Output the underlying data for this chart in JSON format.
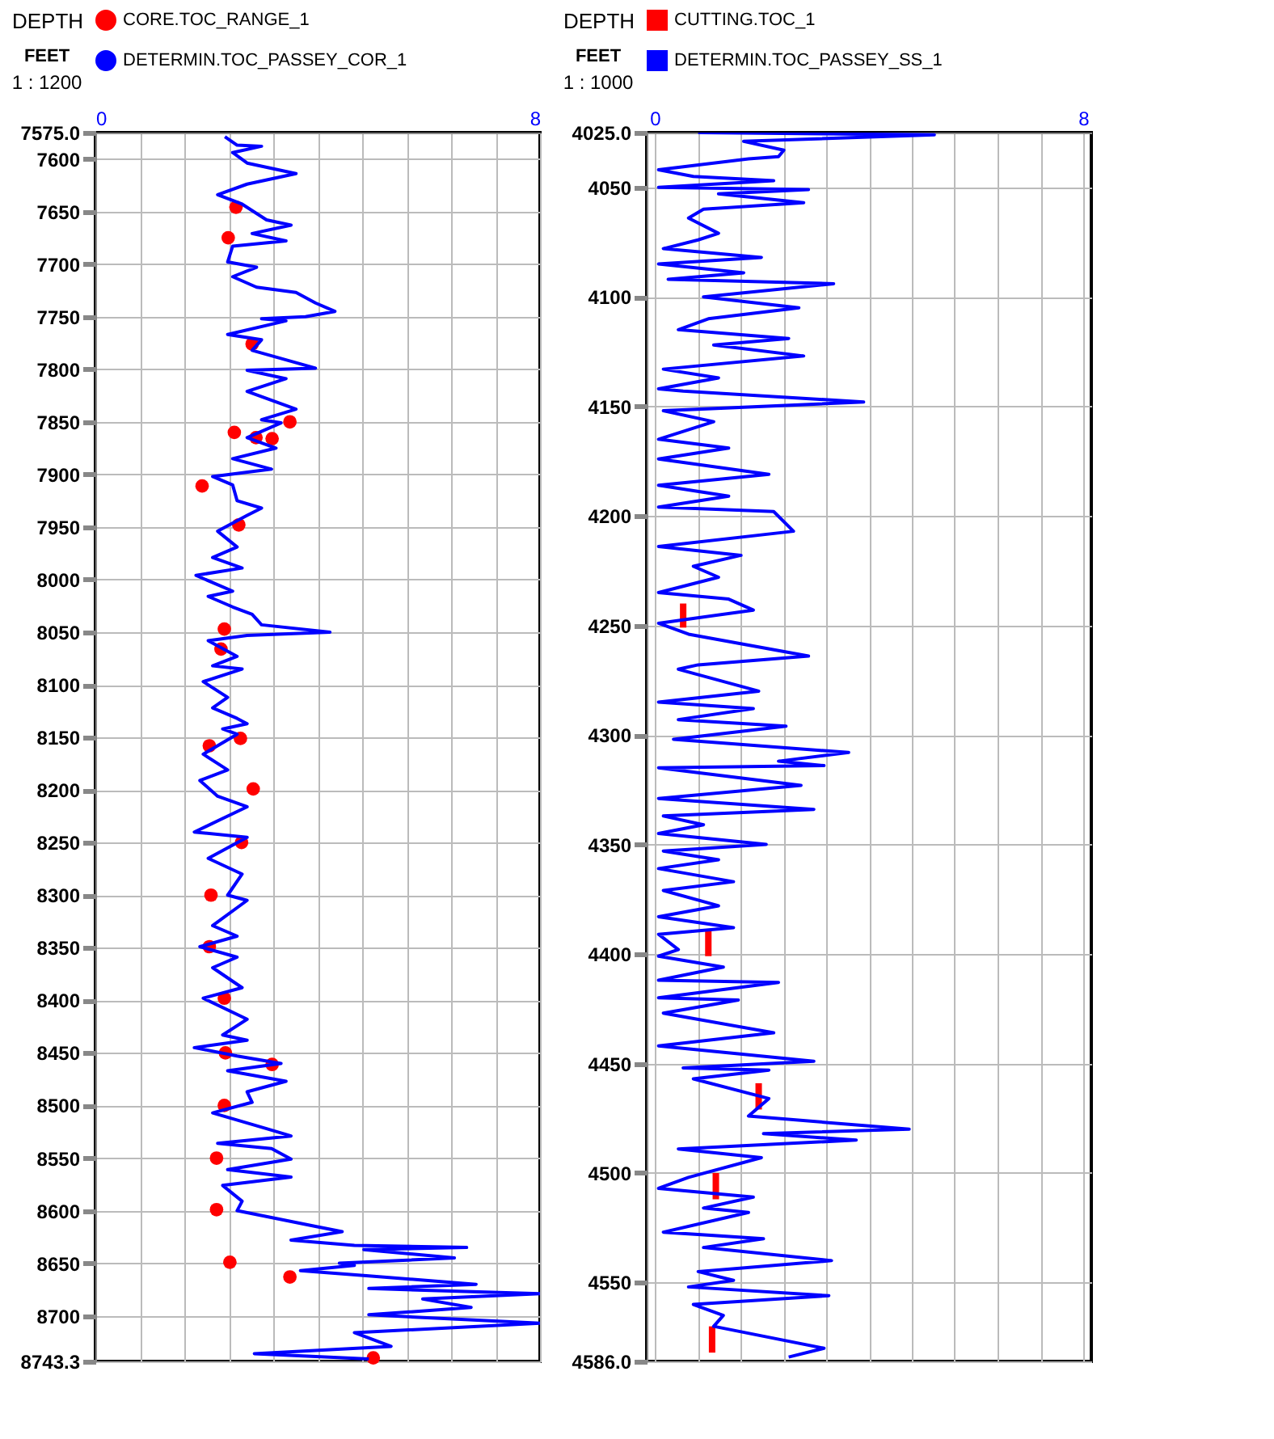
{
  "chart_data": [
    {
      "type": "line",
      "ylabel": "DEPTH",
      "annotations": [
        "FEET",
        "1 : 1200"
      ],
      "legend": "top",
      "grid": true,
      "xlim": [
        0,
        8
      ],
      "xticks": [
        0,
        {
          "value": 0.8,
          "label": null
        },
        {
          "value": 1.6,
          "label": null
        },
        {
          "value": 2.4,
          "label": null
        },
        {
          "value": 3.2,
          "label": null
        },
        {
          "value": 4,
          "label": null
        },
        {
          "value": 4.8,
          "label": null
        },
        {
          "value": 5.6,
          "label": null
        },
        {
          "value": 6.4,
          "label": null
        },
        {
          "value": 7.2,
          "label": null
        },
        8
      ],
      "ylim": [
        8743.3,
        7575
      ],
      "yticks": [
        {
          "value": 7575,
          "label": "7575.0"
        },
        7600,
        7650,
        7700,
        7750,
        7800,
        7850,
        7900,
        7950,
        8000,
        8050,
        8100,
        8150,
        8200,
        8250,
        8300,
        8350,
        8400,
        8450,
        8500,
        8550,
        8600,
        8650,
        8700,
        {
          "value": 8743.3,
          "label": "8743.3"
        }
      ],
      "series": [
        {
          "name": "CORE.TOC_RANGE_1",
          "type": "scatter",
          "marker": "circle",
          "color": "#ff0000",
          "x": [
            2.53,
            2.39,
            2.82,
            3.5,
            2.5,
            2.89,
            3.18,
            1.92,
            2.58,
            2.32,
            2.26,
            2.61,
            2.05,
            2.84,
            2.63,
            2.08,
            2.05,
            2.32,
            2.34,
            3.18,
            2.32,
            2.18,
            2.18,
            2.42,
            3.5,
            5.0
          ],
          "values": [
            7646,
            7675,
            7776,
            7850,
            7860,
            7865,
            7866,
            7911,
            7948,
            8047,
            8066,
            8151,
            8158,
            8199,
            8250,
            8300,
            8349,
            8398,
            8450,
            8461,
            8500,
            8550,
            8599,
            8649,
            8663,
            8740
          ]
        },
        {
          "name": "DETERMIN.TOC_PASSEY_COR_1",
          "color": "#0000ff",
          "x": [
            2.33,
            2.55,
            2.99,
            2.47,
            2.73,
            3.61,
            2.73,
            2.2,
            2.64,
            3.08,
            3.52,
            2.82,
            3.43,
            2.47,
            2.38,
            2.9,
            2.47,
            2.9,
            3.61,
            3.96,
            4.31,
            3.78,
            2.99,
            3.43,
            2.38,
            2.99,
            2.82,
            3.96,
            2.73,
            3.43,
            2.73,
            3.61,
            2.99,
            3.34,
            2.73,
            3.25,
            2.47,
            3.17,
            2.11,
            2.47,
            2.55,
            2.99,
            2.73,
            2.2,
            2.55,
            2.11,
            2.64,
            1.81,
            2.47,
            2.03,
            2.47,
            2.82,
            2.99,
            4.22,
            2.73,
            2.03,
            2.55,
            2.11,
            2.64,
            1.94,
            2.38,
            2.11,
            2.55,
            2.73,
            2.29,
            2.55,
            1.94,
            2.38,
            1.88,
            2.2,
            2.73,
            1.78,
            2.73,
            2.03,
            2.64,
            2.38,
            2.73,
            2.11,
            2.55,
            1.88,
            2.55,
            2.11,
            2.64,
            1.94,
            2.73,
            2.29,
            2.73,
            1.78,
            2.55,
            3.34,
            2.38,
            3.43,
            2.73,
            2.82,
            2.11,
            3.08,
            3.52,
            2.2,
            3.17,
            3.52,
            2.38,
            3.52,
            2.29,
            2.64,
            2.55,
            3.96,
            4.44,
            3.52,
            4.66,
            6.68,
            4.83,
            6.46,
            4.39,
            4.66,
            3.69,
            4.92,
            6.85,
            4.92,
            8,
            5.89,
            6.76,
            4.92,
            8,
            4.66,
            5.32,
            2.86,
            4.92
          ],
          "values": [
            7579,
            7587,
            7588,
            7594,
            7604,
            7614,
            7624,
            7634,
            7643,
            7658,
            7663,
            7671,
            7678,
            7683,
            7698,
            7703,
            7712,
            7722,
            7727,
            7737,
            7745,
            7750,
            7752,
            7754,
            7767,
            7772,
            7782,
            7799,
            7801,
            7809,
            7821,
            7838,
            7848,
            7851,
            7865,
            7875,
            7885,
            7895,
            7902,
            7910,
            7925,
            7932,
            7939,
            7954,
            7969,
            7979,
            7989,
            7996,
            8011,
            8016,
            8026,
            8033,
            8043,
            8050,
            8053,
            8058,
            8073,
            8082,
            8085,
            8097,
            8112,
            8122,
            8132,
            8137,
            8142,
            8147,
            8166,
            8181,
            8191,
            8206,
            8216,
            8240,
            8245,
            8265,
            8280,
            8300,
            8305,
            8329,
            8339,
            8349,
            8359,
            8369,
            8388,
            8398,
            8418,
            8433,
            8438,
            8445,
            8453,
            8460,
            8467,
            8477,
            8487,
            8497,
            8507,
            8522,
            8529,
            8536,
            8541,
            8551,
            8561,
            8568,
            8576,
            8591,
            8600,
            8615,
            8620,
            8628,
            8633,
            8635,
            8637,
            8645,
            8650,
            8652,
            8657,
            8662,
            8670,
            8674,
            8679,
            8684,
            8692,
            8699,
            8707,
            8716,
            8729,
            8736,
            8741
          ]
        }
      ]
    },
    {
      "type": "line",
      "ylabel": "DEPTH",
      "annotations": [
        "FEET",
        "1 : 1000"
      ],
      "legend": "top",
      "grid": true,
      "xlim": [
        0,
        8
      ],
      "xticks": [
        0,
        {
          "value": 0.8,
          "label": null
        },
        {
          "value": 1.6,
          "label": null
        },
        {
          "value": 2.4,
          "label": null
        },
        {
          "value": 3.2,
          "label": null
        },
        {
          "value": 4,
          "label": null
        },
        {
          "value": 4.8,
          "label": null
        },
        {
          "value": 5.6,
          "label": null
        },
        {
          "value": 6.4,
          "label": null
        },
        {
          "value": 7.2,
          "label": null
        },
        8
      ],
      "ylim": [
        4586,
        4025
      ],
      "yticks": [
        {
          "value": 4025,
          "label": "4025.0"
        },
        4050,
        4100,
        4150,
        4200,
        4250,
        4300,
        4350,
        4400,
        4450,
        4500,
        4550,
        {
          "value": 4586,
          "label": "4586.0"
        }
      ],
      "series": [
        {
          "name": "CUTTING.TOC_1",
          "type": "bar",
          "color": "#ff0000",
          "x": [
            0.53,
            1.0,
            1.07,
            1.14,
            1.94
          ],
          "base": [
            4240,
            4389,
            4570,
            4500,
            4459
          ],
          "values": [
            11,
            12,
            12,
            12,
            12
          ]
        },
        {
          "name": "DETERMIN.TOC_PASSEY_SS_1",
          "color": "#0000ff",
          "x": [
            0.81,
            5.22,
            1.66,
            2.41,
            2.31,
            1.75,
            0.07,
            0.72,
            2.22,
            0.07,
            2.87,
            1.19,
            2.78,
            0.91,
            0.63,
            1.19,
            0.81,
            0.16,
            1.99,
            0.07,
            1.66,
            0.25,
            3.34,
            0.91,
            2.69,
            1.0,
            0.44,
            2.5,
            1.1,
            2.78,
            0.16,
            1.19,
            0.07,
            0.53,
            3.9,
            0.16,
            1.1,
            0.07,
            1.38,
            0.07,
            2.13,
            0.07,
            1.38,
            0.07,
            2.22,
            2.59,
            0.07,
            1.61,
            0.72,
            1.19,
            0.07,
            1.38,
            1.84,
            0.07,
            0.63,
            2.87,
            0.81,
            0.44,
            1.94,
            0.07,
            1.84,
            0.44,
            2.45,
            0.35,
            3.62,
            2.31,
            3.16,
            0.07,
            2.73,
            0.07,
            2.97,
            0.16,
            0.91,
            0.07,
            2.08,
            0.16,
            1.19,
            0.07,
            1.47,
            0.16,
            1.19,
            0.07,
            1.47,
            0.07,
            0.44,
            0.07,
            1.28,
            0.07,
            2.31,
            0.07,
            1.56,
            0.16,
            2.22,
            0.07,
            2.97,
            0.53,
            2.13,
            0.72,
            2.13,
            1.75,
            4.75,
            2.03,
            3.76,
            0.44,
            1.99,
            0.63,
            0.07,
            1.84,
            0.91,
            1.75,
            0.16,
            2.03,
            0.91,
            3.3,
            0.81,
            1.47,
            0.63,
            3.25,
            0.72,
            1.28,
            1.1,
            3.16,
            2.5
          ],
          "values": [
            4025,
            4026,
            4029,
            4033,
            4036,
            4037,
            4042,
            4045,
            4047,
            4050,
            4051,
            4053,
            4057,
            4060,
            4064,
            4071,
            4074,
            4078,
            4082,
            4085,
            4089,
            4092,
            4094,
            4100,
            4105,
            4110,
            4115,
            4119,
            4122,
            4127,
            4133,
            4137,
            4142,
            4143,
            4148,
            4152,
            4157,
            4165,
            4169,
            4174,
            4181,
            4186,
            4191,
            4196,
            4198,
            4207,
            4214,
            4218,
            4223,
            4228,
            4235,
            4238,
            4243,
            4249,
            4254,
            4264,
            4268,
            4270,
            4280,
            4285,
            4288,
            4293,
            4296,
            4302,
            4308,
            4312,
            4314,
            4315,
            4323,
            4329,
            4334,
            4337,
            4341,
            4345,
            4350,
            4353,
            4357,
            4361,
            4367,
            4371,
            4378,
            4383,
            4388,
            4391,
            4398,
            4401,
            4406,
            4412,
            4413,
            4420,
            4421,
            4427,
            4436,
            4442,
            4449,
            4452,
            4453,
            4457,
            4466,
            4474,
            4480,
            4482,
            4485,
            4489,
            4493,
            4502,
            4507,
            4511,
            4516,
            4518,
            4527,
            4530,
            4534,
            4540,
            4545,
            4549,
            4552,
            4556,
            4560,
            4565,
            4570,
            4580,
            4584
          ]
        }
      ]
    }
  ]
}
